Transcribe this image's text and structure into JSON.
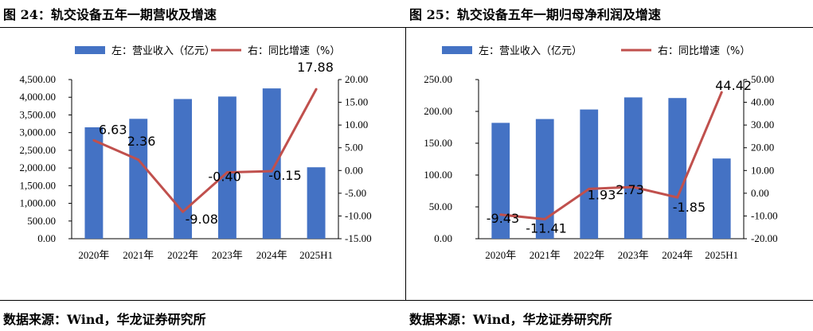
{
  "charts": [
    {
      "fig_title": "图 24：轨交设备五年一期营收及增速",
      "source": "数据来源：Wind，华龙证券研究所",
      "legend": {
        "bar": "左：营业收入（亿元）",
        "line": "右：同比增速（%）"
      },
      "colors": {
        "bar": "#4472c4",
        "line": "#c0504d"
      },
      "chart_data": {
        "type": "bar+line",
        "categories": [
          "2020年",
          "2021年",
          "2022年",
          "2023年",
          "2024年",
          "2025H1"
        ],
        "bar_values": [
          3150,
          3390,
          3950,
          4020,
          4250,
          2020
        ],
        "line_values": [
          6.63,
          2.36,
          -9.08,
          -0.4,
          -0.15,
          17.88
        ],
        "line_labels": [
          "6.63",
          "2.36",
          "-9.08",
          "-0.40",
          "-0.15",
          "17.88"
        ],
        "ylim_left": [
          0,
          4500
        ],
        "yticks_left": [
          "0.00",
          "500.00",
          "1,000.00",
          "1,500.00",
          "2,000.00",
          "2,500.00",
          "3,000.00",
          "3,500.00",
          "4,000.00",
          "4,500.00"
        ],
        "ylim_right": [
          -15,
          20
        ],
        "yticks_right": [
          "-15.00",
          "-10.00",
          "-5.00",
          "0.00",
          "5.00",
          "10.00",
          "15.00",
          "20.00"
        ]
      }
    },
    {
      "fig_title": "图 25：轨交设备五年一期归母净利润及增速",
      "source": "数据来源：Wind，华龙证券研究所",
      "legend": {
        "bar": "左：营业收入（亿元）",
        "line": "右：同比增速（%）"
      },
      "colors": {
        "bar": "#4472c4",
        "line": "#c0504d"
      },
      "chart_data": {
        "type": "bar+line",
        "categories": [
          "2020年",
          "2021年",
          "2022年",
          "2023年",
          "2024年",
          "2025H1"
        ],
        "bar_values": [
          182,
          188,
          203,
          222,
          221,
          126
        ],
        "line_values": [
          -9.43,
          -11.41,
          1.93,
          2.73,
          -1.85,
          44.42
        ],
        "line_labels": [
          "-9.43",
          "-11.41",
          "1.93",
          "2.73",
          "-1.85",
          "44.42"
        ],
        "ylim_left": [
          0,
          250
        ],
        "yticks_left": [
          "0.00",
          "50.00",
          "100.00",
          "150.00",
          "200.00",
          "250.00"
        ],
        "ylim_right": [
          -20,
          50
        ],
        "yticks_right": [
          "-20.00",
          "-10.00",
          "0.00",
          "10.00",
          "20.00",
          "30.00",
          "40.00",
          "50.00"
        ]
      }
    }
  ]
}
